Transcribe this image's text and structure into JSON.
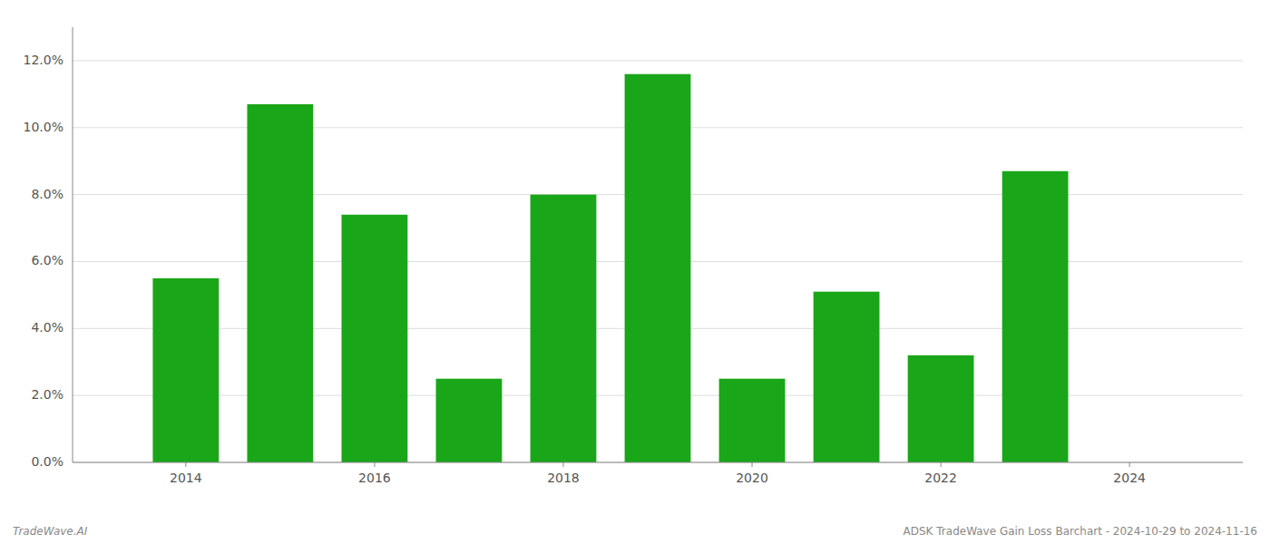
{
  "chart_data": {
    "type": "bar",
    "x": [
      2014,
      2015,
      2016,
      2017,
      2018,
      2019,
      2020,
      2021,
      2022,
      2023
    ],
    "values": [
      0.055,
      0.107,
      0.074,
      0.025,
      0.08,
      0.116,
      0.025,
      0.051,
      0.032,
      0.087
    ],
    "color": "#1aa619",
    "xlim": [
      2012.8,
      2025.2
    ],
    "xticks": [
      2014,
      2016,
      2018,
      2020,
      2022,
      2024
    ],
    "ylim": [
      0,
      0.13
    ],
    "yticks": [
      {
        "value": 0.0,
        "label": "0.0%"
      },
      {
        "value": 0.02,
        "label": "2.0%"
      },
      {
        "value": 0.04,
        "label": "4.0%"
      },
      {
        "value": 0.06,
        "label": "6.0%"
      },
      {
        "value": 0.08,
        "label": "8.0%"
      },
      {
        "value": 0.1,
        "label": "10.0%"
      },
      {
        "value": 0.12,
        "label": "12.0%"
      }
    ],
    "grid": true,
    "annotations": [
      "TradeWave.AI",
      "ADSK TradeWave Gain Loss Barchart - 2024-10-29 to 2024-11-16"
    ]
  }
}
